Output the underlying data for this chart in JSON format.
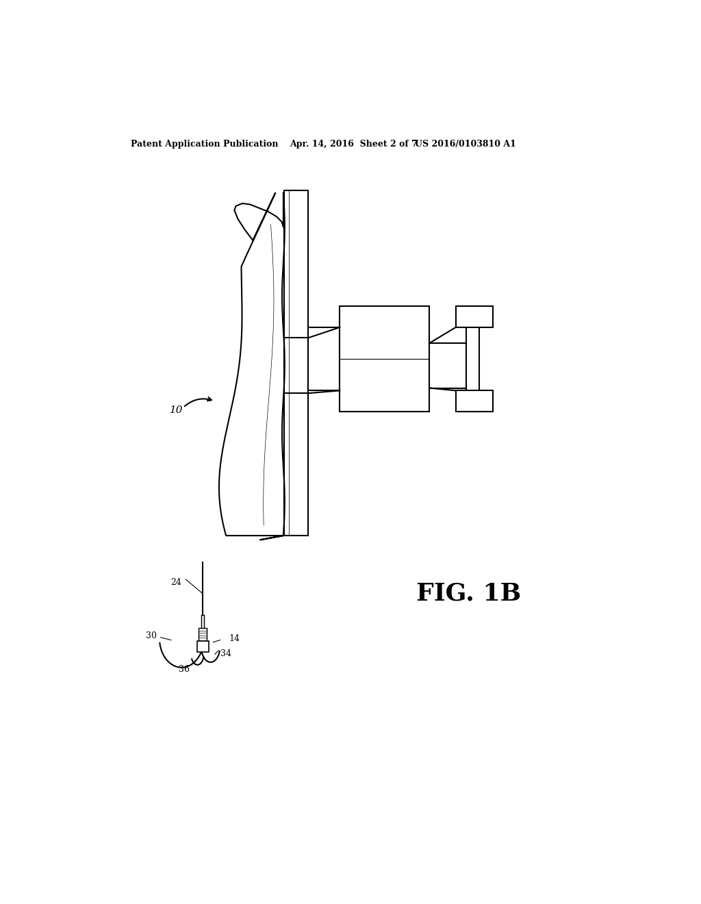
{
  "background_color": "#ffffff",
  "header_left": "Patent Application Publication",
  "header_mid": "Apr. 14, 2016  Sheet 2 of 7",
  "header_right": "US 2016/0103810 A1",
  "fig_label": "FIG. 1B",
  "label_10": "10",
  "label_24": "24",
  "label_14": "14",
  "label_30": "30",
  "label_34": "34",
  "label_36": "36",
  "line_color": "#000000",
  "line_width": 1.5,
  "thin_line": 0.8
}
